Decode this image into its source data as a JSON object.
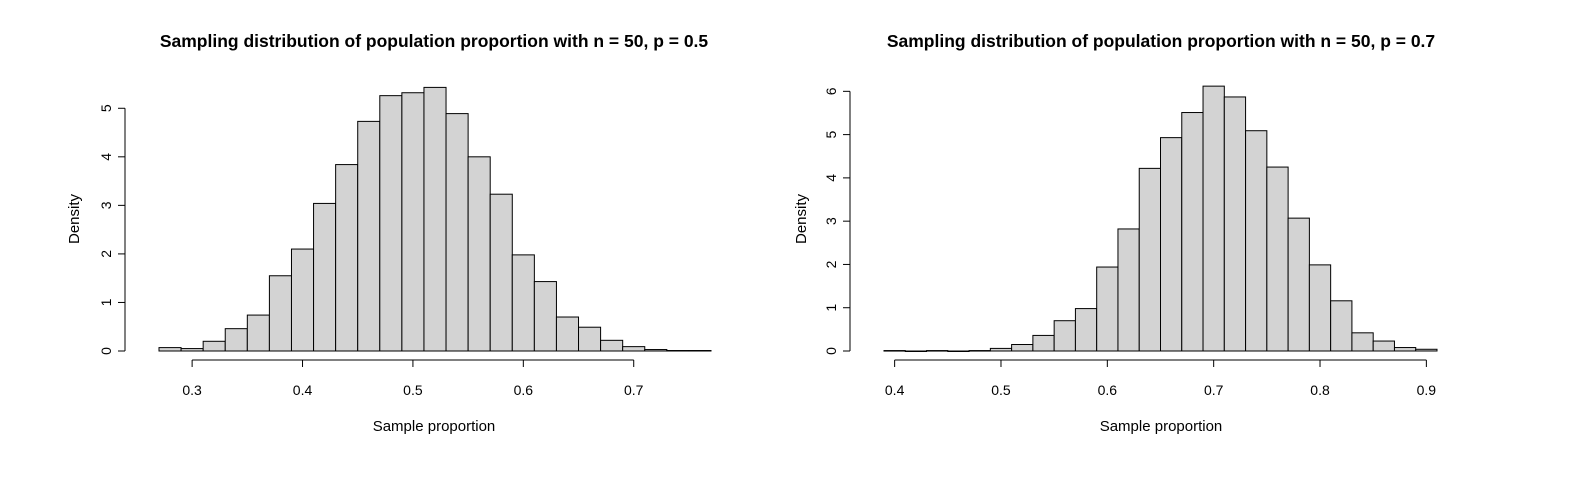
{
  "chart_data": [
    {
      "type": "bar",
      "title": "Sampling distribution of population proportion with n = 50, p = 0.5",
      "xlabel": "Sample proportion",
      "ylabel": "Density",
      "xlim": [
        0.27,
        0.77
      ],
      "ylim": [
        0,
        5.5
      ],
      "xticks": [
        0.3,
        0.4,
        0.5,
        0.6,
        0.7
      ],
      "xtick_labels": [
        "0.3",
        "0.4",
        "0.5",
        "0.6",
        "0.7"
      ],
      "yticks": [
        0,
        1,
        2,
        3,
        4,
        5
      ],
      "ytick_labels": [
        "0",
        "1",
        "2",
        "3",
        "4",
        "5"
      ],
      "grid": false,
      "bin_edges": [
        0.27,
        0.29,
        0.31,
        0.33,
        0.35,
        0.37,
        0.39,
        0.41,
        0.43,
        0.45,
        0.47,
        0.49,
        0.51,
        0.53,
        0.55,
        0.57,
        0.59,
        0.61,
        0.63,
        0.65,
        0.67,
        0.69,
        0.71,
        0.73,
        0.75,
        0.77
      ],
      "values": [
        0.07,
        0.05,
        0.2,
        0.46,
        0.74,
        1.55,
        2.1,
        3.04,
        3.84,
        4.73,
        5.26,
        5.32,
        5.43,
        4.89,
        4.0,
        3.23,
        1.98,
        1.43,
        0.7,
        0.49,
        0.22,
        0.09,
        0.03,
        0.01,
        0.01
      ],
      "bar_fill": "#d3d3d3",
      "bar_stroke": "#000000"
    },
    {
      "type": "bar",
      "title": "Sampling distribution of population proportion with n = 50, p = 0.7",
      "xlabel": "Sample proportion",
      "ylabel": "Density",
      "xlim": [
        0.39,
        0.91
      ],
      "ylim": [
        0,
        6.1
      ],
      "xticks": [
        0.4,
        0.5,
        0.6,
        0.7,
        0.8,
        0.9
      ],
      "xtick_labels": [
        "0.4",
        "0.5",
        "0.6",
        "0.7",
        "0.8",
        "0.9"
      ],
      "yticks": [
        0,
        1,
        2,
        3,
        4,
        5,
        6
      ],
      "ytick_labels": [
        "0",
        "1",
        "2",
        "3",
        "4",
        "5",
        "6"
      ],
      "grid": false,
      "bin_edges": [
        0.39,
        0.41,
        0.43,
        0.45,
        0.47,
        0.49,
        0.51,
        0.53,
        0.55,
        0.57,
        0.59,
        0.61,
        0.63,
        0.65,
        0.67,
        0.69,
        0.71,
        0.73,
        0.75,
        0.77,
        0.79,
        0.81,
        0.83,
        0.85,
        0.87,
        0.89,
        0.91
      ],
      "values": [
        0.01,
        0.0,
        0.01,
        0.0,
        0.01,
        0.06,
        0.15,
        0.36,
        0.7,
        0.98,
        1.94,
        2.82,
        4.22,
        4.93,
        5.51,
        6.12,
        5.87,
        5.09,
        4.25,
        3.07,
        1.99,
        1.16,
        0.42,
        0.23,
        0.08,
        0.04
      ],
      "bar_fill": "#d3d3d3",
      "bar_stroke": "#000000"
    }
  ]
}
